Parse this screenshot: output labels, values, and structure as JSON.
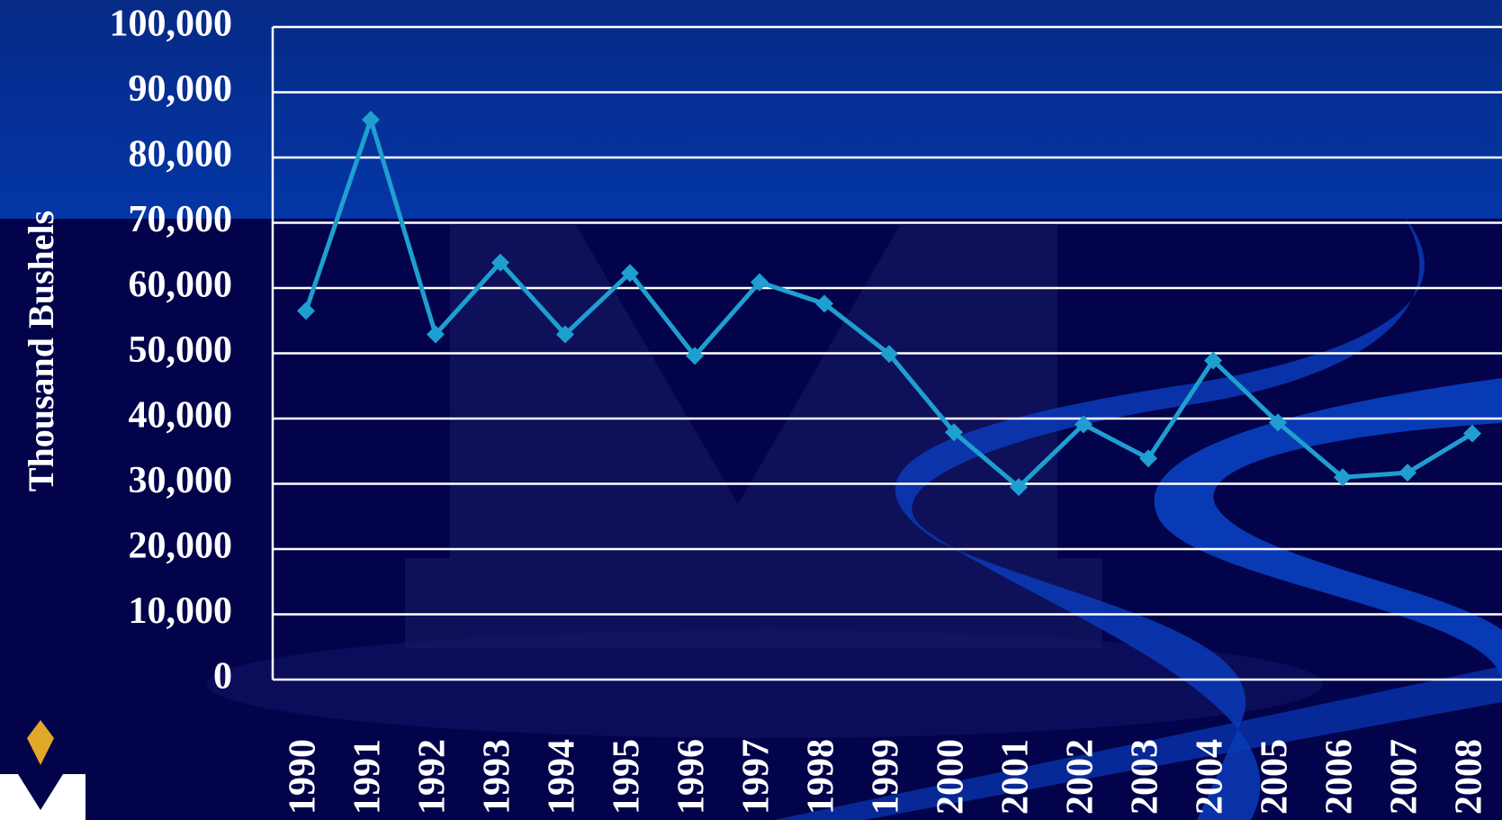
{
  "chart_data": {
    "type": "line",
    "y_label": "Thousand Bushels",
    "categories": [
      "1990",
      "1991",
      "1992",
      "1993",
      "1994",
      "1995",
      "1996",
      "1997",
      "1998",
      "1999",
      "2000",
      "2001",
      "2002",
      "2003",
      "2004",
      "2005",
      "2006",
      "2007",
      "2008"
    ],
    "values": [
      56500,
      85800,
      52900,
      63900,
      52900,
      62300,
      49600,
      60900,
      57600,
      49900,
      37900,
      29500,
      39100,
      33900,
      48900,
      39400,
      31000,
      31700,
      37700
    ],
    "color": "#1e9fd0",
    "ylim": [
      0,
      100000
    ],
    "yticks": [
      0,
      {
        "value": 10000,
        "label": "10,000"
      },
      {
        "value": 20000,
        "label": "20,000"
      },
      {
        "value": 30000,
        "label": "30,000"
      },
      {
        "value": 40000,
        "label": "40,000"
      },
      {
        "value": 50000,
        "label": "50,000"
      },
      {
        "value": 60000,
        "label": "60,000"
      },
      {
        "value": 70000,
        "label": "70,000"
      },
      {
        "value": 80000,
        "label": "80,000"
      },
      {
        "value": 90000,
        "label": "90,000"
      },
      {
        "value": 100000,
        "label": "100,000"
      }
    ],
    "grid": true
  }
}
